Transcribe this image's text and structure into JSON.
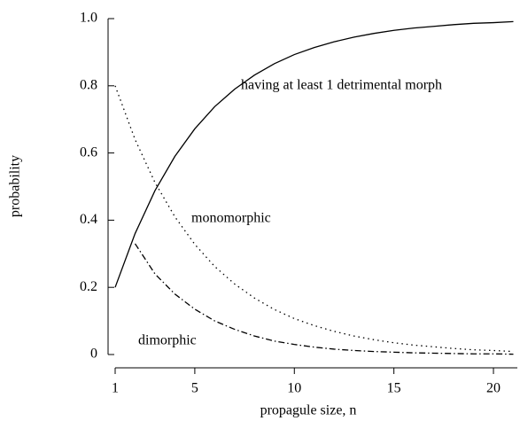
{
  "chart_data": {
    "type": "line",
    "xlabel": "propagule size, n",
    "ylabel": "probability",
    "annotations": [
      "having at least 1 detrimental morph",
      "monomorphic",
      "dimorphic"
    ],
    "xlim": [
      1,
      21.2
    ],
    "ylim": [
      0,
      1
    ],
    "xticks": [
      1,
      5,
      10,
      15,
      20
    ],
    "yticks": [
      0,
      0.2,
      0.4,
      0.6,
      0.8,
      {
        "value": 1,
        "label": "1.0"
      }
    ],
    "series": [
      {
        "color": "#000",
        "style": "solid",
        "x": [
          1,
          2,
          3,
          4,
          5,
          6,
          7,
          8,
          9,
          10,
          11,
          12,
          13,
          14,
          15,
          16,
          17,
          18,
          19,
          20,
          21
        ],
        "values": [
          0.2,
          0.36,
          0.488,
          0.59,
          0.672,
          0.738,
          0.79,
          0.832,
          0.866,
          0.893,
          0.914,
          0.931,
          0.945,
          0.956,
          0.965,
          0.972,
          0.977,
          0.982,
          0.986,
          0.988,
          0.991
        ]
      },
      {
        "color": "#000",
        "style": "dotted",
        "x": [
          1,
          2,
          3,
          4,
          5,
          6,
          7,
          8,
          9,
          10,
          11,
          12,
          13,
          14,
          15,
          16,
          17,
          18,
          19,
          20,
          21
        ],
        "values": [
          0.8,
          0.64,
          0.512,
          0.41,
          0.328,
          0.262,
          0.21,
          0.168,
          0.134,
          0.107,
          0.086,
          0.069,
          0.055,
          0.044,
          0.035,
          0.028,
          0.023,
          0.018,
          0.014,
          0.012,
          0.009
        ]
      },
      {
        "color": "#000",
        "style": "dashdot",
        "x": [
          2,
          3,
          4,
          5,
          6,
          7,
          8,
          9,
          10,
          11,
          12,
          13,
          14,
          15,
          16,
          17,
          18,
          19,
          20,
          21
        ],
        "values": [
          0.33,
          0.24,
          0.18,
          0.135,
          0.1,
          0.075,
          0.055,
          0.04,
          0.03,
          0.022,
          0.016,
          0.012,
          0.009,
          0.007,
          0.005,
          0.004,
          0.003,
          0.002,
          0.002,
          0.001
        ]
      }
    ]
  }
}
